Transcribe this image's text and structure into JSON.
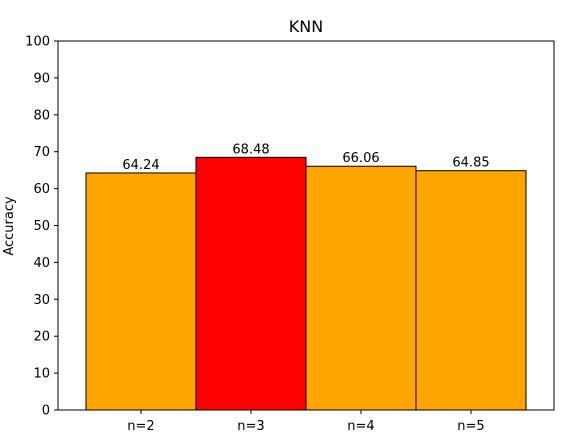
{
  "chart_data": {
    "type": "bar",
    "title": "KNN",
    "xlabel": "",
    "ylabel": "Accuracy",
    "categories": [
      "n=2",
      "n=3",
      "n=4",
      "n=5"
    ],
    "values": [
      64.24,
      68.48,
      66.06,
      64.85
    ],
    "data_labels": [
      "64.24",
      "68.48",
      "66.06",
      "64.85"
    ],
    "bar_colors": [
      "#ffa500",
      "#ff0000",
      "#ffa500",
      "#ffa500"
    ],
    "ylim": [
      0,
      100
    ],
    "yticks": [
      0,
      10,
      20,
      30,
      40,
      50,
      60,
      70,
      80,
      90,
      100
    ],
    "grid": false,
    "legend": "none"
  }
}
